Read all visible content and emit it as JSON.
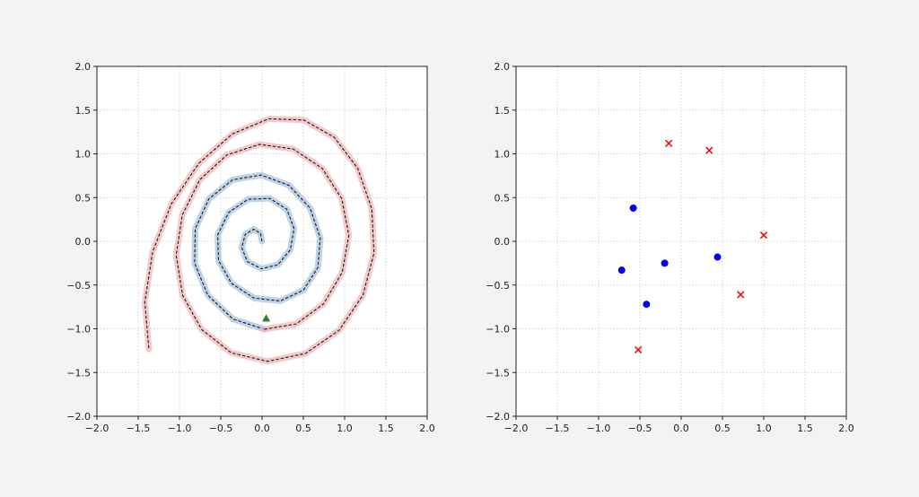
{
  "chart_data": [
    {
      "type": "line",
      "xlim": [
        -2.0,
        2.0
      ],
      "ylim": [
        -2.0,
        2.0
      ],
      "x_ticks": [
        -2.0,
        -1.5,
        -1.0,
        -0.5,
        0.0,
        0.5,
        1.0,
        1.5,
        2.0
      ],
      "y_ticks": [
        -2.0,
        -1.5,
        -1.0,
        -0.5,
        0.0,
        0.5,
        1.0,
        1.5,
        2.0
      ],
      "x_tick_labels": [
        "−2.0",
        "−1.5",
        "−1.0",
        "−0.5",
        "0.0",
        "0.5",
        "1.0",
        "1.5",
        "2.0"
      ],
      "y_tick_labels": [
        "−2.0",
        "−1.5",
        "−1.0",
        "−0.5",
        "0.0",
        "0.5",
        "1.0",
        "1.5",
        "2.0"
      ],
      "grid": true,
      "series": [
        {
          "style": "shaded band with dashed centre line",
          "band_color": "#a9c4e0",
          "line_color": "#1a1a1a",
          "points": [
            [
              0.0,
              0.0
            ],
            [
              -0.0189,
              0.0919
            ],
            [
              -0.101,
              0.1385
            ],
            [
              -0.2032,
              0.0801
            ],
            [
              -0.2454,
              -0.0712
            ],
            [
              -0.1787,
              -0.2314
            ],
            [
              -0.0074,
              -0.3135
            ],
            [
              0.1923,
              -0.2678
            ],
            [
              0.3422,
              -0.0955
            ],
            [
              0.3883,
              0.1445
            ],
            [
              0.3003,
              0.3655
            ],
            [
              0.094,
              0.4906
            ],
            [
              -0.1692,
              0.4809
            ],
            [
              -0.4045,
              0.3306
            ],
            [
              -0.537,
              0.0755
            ],
            [
              -0.5273,
              -0.2185
            ],
            [
              -0.3698,
              -0.4808
            ],
            [
              -0.0974,
              -0.6496
            ],
            [
              0.2201,
              -0.6815
            ],
            [
              0.5011,
              -0.5583
            ],
            [
              0.6754,
              -0.2999
            ],
            [
              0.7052,
              0.0376
            ],
            [
              0.5818,
              0.3798
            ],
            [
              0.3263,
              0.6398
            ],
            [
              -0.0102,
              0.7578
            ],
            [
              -0.3577,
              0.7039
            ],
            [
              -0.6444,
              0.4845
            ],
            [
              -0.8094,
              0.1421
            ],
            [
              -0.8166,
              -0.2497
            ],
            [
              -0.6568,
              -0.6166
            ],
            [
              -0.3543,
              -0.8875
            ],
            [
              0.0265,
              -1.0054
            ]
          ]
        },
        {
          "style": "shaded band with dashed centre line",
          "band_color": "#f0b8b8",
          "line_color": "#1a1a1a",
          "points": [
            [
              0.0265,
              -1.0054
            ],
            [
              0.4134,
              -0.9447
            ],
            [
              0.7471,
              -0.7131
            ],
            [
              0.9714,
              -0.3532
            ],
            [
              1.0511,
              0.0684
            ],
            [
              0.9658,
              0.4869
            ],
            [
              0.7288,
              0.8343
            ],
            [
              0.3773,
              1.0551
            ],
            [
              -0.0318,
              1.1085
            ],
            [
              -0.4266,
              0.9873
            ],
            [
              -0.7535,
              0.7053
            ],
            [
              -0.9663,
              0.2994
            ],
            [
              -1.0406,
              -0.1596
            ],
            [
              -0.9619,
              -0.6186
            ],
            [
              -0.7317,
              -1.0081
            ],
            [
              -0.3734,
              -1.2744
            ],
            [
              0.0656,
              -1.3721
            ],
            [
              0.5251,
              -1.2825
            ],
            [
              0.9317,
              -1.0182
            ],
            [
              1.2216,
              -0.6157
            ],
            [
              1.3559,
              -0.1344
            ],
            [
              1.3284,
              0.3724
            ],
            [
              1.1575,
              0.8365
            ],
            [
              0.8733,
              1.1908
            ],
            [
              0.5044,
              1.3873
            ],
            [
              0.0811,
              1.4008
            ],
            [
              -0.358,
              1.2287
            ],
            [
              -0.7654,
              0.8923
            ],
            [
              -1.099,
              0.4273
            ],
            [
              -1.3252,
              -0.1203
            ],
            [
              -1.42,
              -0.6951
            ],
            [
              -1.3709,
              -1.2319
            ]
          ]
        }
      ],
      "markers": [
        {
          "shape": "triangle",
          "color": "#2e7d32",
          "x": 0.05,
          "y": -0.88
        }
      ]
    },
    {
      "type": "scatter",
      "xlim": [
        -2.0,
        2.0
      ],
      "ylim": [
        -2.0,
        2.0
      ],
      "x_ticks": [
        -2.0,
        -1.5,
        -1.0,
        -0.5,
        0.0,
        0.5,
        1.0,
        1.5,
        2.0
      ],
      "y_ticks": [
        -2.0,
        -1.5,
        -1.0,
        -0.5,
        0.0,
        0.5,
        1.0,
        1.5,
        2.0
      ],
      "x_tick_labels": [
        "−2.0",
        "−1.5",
        "−1.0",
        "−0.5",
        "0.0",
        "0.5",
        "1.0",
        "1.5",
        "2.0"
      ],
      "y_tick_labels": [
        "−2.0",
        "−1.5",
        "−1.0",
        "−0.5",
        "0.0",
        "0.5",
        "1.0",
        "1.5",
        "2.0"
      ],
      "grid": true,
      "series": [
        {
          "marker": "circle",
          "color": "#0000ee",
          "points": [
            [
              -0.58,
              0.38
            ],
            [
              -0.72,
              -0.33
            ],
            [
              -0.2,
              -0.25
            ],
            [
              -0.42,
              -0.72
            ],
            [
              0.44,
              -0.18
            ]
          ]
        },
        {
          "marker": "x",
          "color": "#ee1111",
          "points": [
            [
              -0.15,
              1.12
            ],
            [
              0.34,
              1.04
            ],
            [
              1.0,
              0.07
            ],
            [
              0.72,
              -0.61
            ],
            [
              -0.52,
              -1.24
            ]
          ]
        }
      ]
    }
  ]
}
